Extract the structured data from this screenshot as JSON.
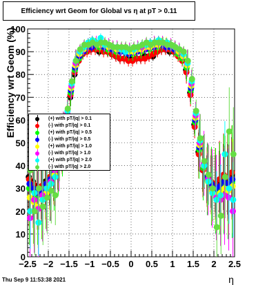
{
  "title": {
    "text": "Efficiency wrt Geom for Global vs    η  at pT > 0.11"
  },
  "timestamp": "Thu Sep  9 11:53:38 2021",
  "chart_data": {
    "type": "scatter",
    "title": "Efficiency wrt Geom for Global vs    η  at pT > 0.11",
    "xlabel": "η",
    "ylabel": "Efficiency wrt Geom (%)",
    "xlim": [
      -2.5,
      2.5
    ],
    "ylim": [
      0,
      100
    ],
    "xticks": [
      "−2.5",
      "−2",
      "−1.5",
      "−1",
      "−0.5",
      "0",
      "0.5",
      "1",
      "1.5",
      "2",
      "2.5"
    ],
    "yticks": [
      "0",
      "10",
      "20",
      "30",
      "40",
      "50",
      "60",
      "70",
      "80",
      "90",
      "100"
    ],
    "grid": true,
    "legend_position": "left-middle",
    "series": [
      {
        "name": "(+) with pT/|q| > 0.1",
        "color": "#000000",
        "marker": "circle",
        "x": [
          -2.45,
          -2.35,
          -2.25,
          -2.15,
          -2.05,
          -1.95,
          -1.85,
          -1.75,
          -1.65,
          -1.55,
          -1.45,
          -1.35,
          -1.25,
          -1.15,
          -1.05,
          -0.95,
          -0.85,
          -0.75,
          -0.65,
          -0.55,
          -0.45,
          -0.35,
          -0.25,
          -0.15,
          -0.05,
          0.05,
          0.15,
          0.25,
          0.35,
          0.45,
          0.55,
          0.65,
          0.75,
          0.85,
          0.95,
          1.05,
          1.15,
          1.25,
          1.35,
          1.45,
          1.55,
          1.65,
          1.75,
          1.85,
          1.95,
          2.05,
          2.15,
          2.25,
          2.35,
          2.45
        ],
        "y": [
          35,
          33,
          31,
          30,
          33,
          34,
          35,
          39,
          46,
          58,
          70,
          80,
          86,
          89,
          91,
          91,
          92,
          90,
          91,
          90,
          89,
          88,
          87,
          87,
          87,
          87,
          87,
          87,
          88,
          88,
          88,
          90,
          91,
          91,
          90,
          90,
          89,
          87,
          82,
          72,
          58,
          46,
          38,
          34,
          33,
          32,
          33,
          35,
          34,
          36
        ]
      },
      {
        "name": "(-) with pT/|q| > 0.1",
        "color": "#ff0000",
        "marker": "circle",
        "x": [
          -2.45,
          -2.35,
          -2.25,
          -2.15,
          -2.05,
          -1.95,
          -1.85,
          -1.75,
          -1.65,
          -1.55,
          -1.45,
          -1.35,
          -1.25,
          -1.15,
          -1.05,
          -0.95,
          -0.85,
          -0.75,
          -0.65,
          -0.55,
          -0.45,
          -0.35,
          -0.25,
          -0.15,
          -0.05,
          0.05,
          0.15,
          0.25,
          0.35,
          0.45,
          0.55,
          0.65,
          0.75,
          0.85,
          0.95,
          1.05,
          1.15,
          1.25,
          1.35,
          1.45,
          1.55,
          1.65,
          1.75,
          1.85,
          1.95,
          2.05,
          2.15,
          2.25,
          2.35,
          2.45
        ],
        "y": [
          34,
          32,
          30,
          31,
          32,
          35,
          36,
          40,
          47,
          59,
          71,
          81,
          86,
          89,
          90,
          91,
          91,
          91,
          90,
          90,
          89,
          88,
          87,
          87,
          86,
          86,
          87,
          87,
          87,
          88,
          89,
          90,
          91,
          91,
          91,
          90,
          88,
          86,
          81,
          71,
          57,
          45,
          38,
          35,
          33,
          32,
          34,
          36,
          35,
          37
        ]
      },
      {
        "name": "(+) with pT/|q| > 0.5",
        "color": "#00ff00",
        "marker": "circle",
        "x": [
          -2.45,
          -2.35,
          -2.25,
          -2.15,
          -2.05,
          -1.95,
          -1.85,
          -1.75,
          -1.65,
          -1.55,
          -1.45,
          -1.35,
          -1.25,
          -1.15,
          -1.05,
          -0.95,
          -0.85,
          -0.75,
          -0.65,
          -0.55,
          -0.45,
          -0.35,
          -0.25,
          -0.15,
          -0.05,
          0.05,
          0.15,
          0.25,
          0.35,
          0.45,
          0.55,
          0.65,
          0.75,
          0.85,
          0.95,
          1.05,
          1.15,
          1.25,
          1.35,
          1.45,
          1.55,
          1.65,
          1.75,
          1.85,
          1.95,
          2.05,
          2.15,
          2.25,
          2.35,
          2.45
        ],
        "y": [
          30,
          29,
          27,
          28,
          31,
          33,
          36,
          41,
          48,
          60,
          72,
          82,
          87,
          90,
          92,
          93,
          93,
          92,
          92,
          91,
          91,
          90,
          90,
          90,
          89,
          89,
          90,
          90,
          91,
          91,
          92,
          92,
          93,
          93,
          92,
          91,
          89,
          87,
          83,
          73,
          59,
          47,
          39,
          34,
          31,
          29,
          30,
          32,
          31,
          33
        ]
      },
      {
        "name": "(-) with pT/|q| > 0.5",
        "color": "#0000ff",
        "marker": "circle",
        "x": [
          -2.45,
          -2.35,
          -2.25,
          -2.15,
          -2.05,
          -1.95,
          -1.85,
          -1.75,
          -1.65,
          -1.55,
          -1.45,
          -1.35,
          -1.25,
          -1.15,
          -1.05,
          -0.95,
          -0.85,
          -0.75,
          -0.65,
          -0.55,
          -0.45,
          -0.35,
          -0.25,
          -0.15,
          -0.05,
          0.05,
          0.15,
          0.25,
          0.35,
          0.45,
          0.55,
          0.65,
          0.75,
          0.85,
          0.95,
          1.05,
          1.15,
          1.25,
          1.35,
          1.45,
          1.55,
          1.65,
          1.75,
          1.85,
          1.95,
          2.05,
          2.15,
          2.25,
          2.35,
          2.45
        ],
        "y": [
          32,
          30,
          28,
          29,
          32,
          34,
          37,
          42,
          49,
          61,
          73,
          83,
          88,
          90,
          92,
          92,
          93,
          93,
          92,
          92,
          91,
          91,
          90,
          90,
          89,
          90,
          90,
          91,
          91,
          92,
          92,
          93,
          93,
          92,
          92,
          91,
          90,
          88,
          84,
          74,
          60,
          48,
          40,
          35,
          32,
          30,
          31,
          33,
          32,
          34
        ]
      },
      {
        "name": "(+) with pT/|q| > 1.0",
        "color": "#ffff00",
        "marker": "circle",
        "x": [
          -2.45,
          -2.35,
          -2.25,
          -2.15,
          -2.05,
          -1.95,
          -1.85,
          -1.75,
          -1.65,
          -1.55,
          -1.45,
          -1.35,
          -1.25,
          -1.15,
          -1.05,
          -0.95,
          -0.85,
          -0.75,
          -0.65,
          -0.55,
          -0.45,
          -0.35,
          -0.25,
          -0.15,
          -0.05,
          0.05,
          0.15,
          0.25,
          0.35,
          0.45,
          0.55,
          0.65,
          0.75,
          0.85,
          0.95,
          1.05,
          1.15,
          1.25,
          1.35,
          1.45,
          1.55,
          1.65,
          1.75,
          1.85,
          1.95,
          2.05,
          2.15,
          2.25,
          2.35,
          2.45
        ],
        "y": [
          26,
          24,
          22,
          25,
          28,
          32,
          36,
          42,
          50,
          62,
          74,
          84,
          89,
          91,
          93,
          94,
          94,
          93,
          93,
          92,
          92,
          91,
          91,
          91,
          90,
          90,
          91,
          91,
          92,
          92,
          93,
          93,
          94,
          94,
          93,
          92,
          90,
          88,
          84,
          75,
          61,
          49,
          40,
          33,
          29,
          27,
          28,
          30,
          29,
          31
        ]
      },
      {
        "name": "(-) with pT/|q| > 1.0",
        "color": "#ff00ff",
        "marker": "circle",
        "x": [
          -2.45,
          -2.35,
          -2.25,
          -2.15,
          -2.05,
          -1.95,
          -1.85,
          -1.75,
          -1.65,
          -1.55,
          -1.45,
          -1.35,
          -1.25,
          -1.15,
          -1.05,
          -0.95,
          -0.85,
          -0.75,
          -0.65,
          -0.55,
          -0.45,
          -0.35,
          -0.25,
          -0.15,
          -0.05,
          0.05,
          0.15,
          0.25,
          0.35,
          0.45,
          0.55,
          0.65,
          0.75,
          0.85,
          0.95,
          1.05,
          1.15,
          1.25,
          1.35,
          1.45,
          1.55,
          1.65,
          1.75,
          1.85,
          1.95,
          2.05,
          2.15,
          2.25,
          2.35,
          2.45
        ],
        "y": [
          17,
          25,
          21,
          27,
          30,
          33,
          38,
          43,
          51,
          63,
          75,
          85,
          90,
          92,
          93,
          94,
          94,
          94,
          93,
          93,
          92,
          92,
          91,
          91,
          91,
          91,
          92,
          92,
          93,
          93,
          94,
          94,
          94,
          93,
          93,
          92,
          91,
          89,
          85,
          76,
          62,
          50,
          41,
          34,
          30,
          26,
          25,
          27,
          26,
          20
        ]
      },
      {
        "name": "(+) with pT/|q| > 2.0",
        "color": "#00ffff",
        "marker": "circle",
        "x": [
          -2.45,
          -2.35,
          -2.25,
          -2.15,
          -2.05,
          -1.95,
          -1.85,
          -1.75,
          -1.65,
          -1.55,
          -1.45,
          -1.35,
          -1.25,
          -1.15,
          -1.05,
          -0.95,
          -0.85,
          -0.75,
          -0.65,
          -0.55,
          -0.45,
          -0.35,
          -0.25,
          -0.15,
          -0.05,
          0.05,
          0.15,
          0.25,
          0.35,
          0.45,
          0.55,
          0.65,
          0.75,
          0.85,
          0.95,
          1.05,
          1.15,
          1.25,
          1.35,
          1.45,
          1.55,
          1.65,
          1.75,
          1.85,
          1.95,
          2.05,
          2.15,
          2.25,
          2.35,
          2.45
        ],
        "y": [
          20,
          28,
          15,
          25,
          30,
          32,
          35,
          44,
          52,
          64,
          76,
          86,
          90,
          92,
          94,
          95,
          94,
          96,
          93,
          93,
          92,
          92,
          91,
          90,
          91,
          91,
          92,
          93,
          93,
          94,
          94,
          95,
          94,
          94,
          93,
          92,
          91,
          89,
          85,
          77,
          63,
          51,
          40,
          33,
          28,
          25,
          27,
          45,
          30,
          25
        ]
      },
      {
        "name": "(-) with pT/|q| > 2.0",
        "color": "#66dd44",
        "marker": "circle",
        "x": [
          -2.45,
          -2.35,
          -2.25,
          -2.15,
          -2.05,
          -1.95,
          -1.85,
          -1.75,
          -1.65,
          -1.55,
          -1.45,
          -1.35,
          -1.25,
          -1.15,
          -1.05,
          -0.95,
          -0.85,
          -0.75,
          -0.65,
          -0.55,
          -0.45,
          -0.35,
          -0.25,
          -0.15,
          -0.05,
          0.05,
          0.15,
          0.25,
          0.35,
          0.45,
          0.55,
          0.65,
          0.75,
          0.85,
          0.95,
          1.05,
          1.15,
          1.25,
          1.35,
          1.45,
          1.55,
          1.65,
          1.75,
          1.85,
          1.95,
          2.05,
          2.15,
          2.25,
          2.35,
          2.45
        ],
        "y": [
          38,
          20,
          30,
          22,
          26,
          29,
          27,
          45,
          53,
          65,
          77,
          86,
          91,
          93,
          93,
          94,
          93,
          94,
          94,
          93,
          92,
          92,
          92,
          92,
          91,
          92,
          92,
          93,
          94,
          93,
          94,
          94,
          94,
          93,
          93,
          92,
          91,
          90,
          86,
          78,
          64,
          52,
          42,
          36,
          30,
          13,
          18,
          35,
          55,
          45
        ]
      }
    ]
  }
}
